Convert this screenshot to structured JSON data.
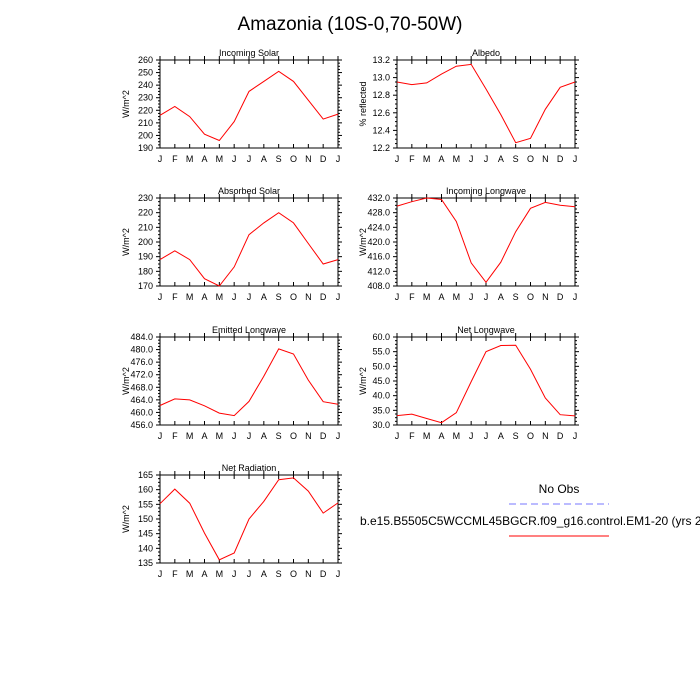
{
  "figure": {
    "title": "Amazonia (10S-0,70-50W)",
    "legend": {
      "entries": [
        {
          "label": "No Obs",
          "color": "#7777ff",
          "dash": true
        },
        {
          "label": "b.e15.B5505C5WCCML45BGCR.f09_g16.control.EM1-20 (yrs 2",
          "color": "#ff0000",
          "dash": false
        }
      ]
    }
  },
  "chart_data": [
    {
      "type": "line",
      "title": "Incoming Solar",
      "ylabel": "W/m^2",
      "categories": [
        "J",
        "F",
        "M",
        "A",
        "M",
        "J",
        "J",
        "A",
        "S",
        "O",
        "N",
        "D",
        "J"
      ],
      "ylim": [
        190,
        260
      ],
      "yticks": [
        190,
        200,
        210,
        220,
        230,
        240,
        250,
        260
      ],
      "ytick_labels": [
        "190",
        "200",
        "210",
        "220",
        "230",
        "240",
        "250",
        "260"
      ],
      "series": [
        {
          "color": "#ff0000",
          "values": [
            216,
            223,
            215,
            201,
            196,
            211,
            235,
            243,
            251,
            243,
            228,
            213,
            217
          ]
        }
      ]
    },
    {
      "type": "line",
      "title": "Albedo",
      "ylabel": "% reflected",
      "categories": [
        "J",
        "F",
        "M",
        "A",
        "M",
        "J",
        "J",
        "A",
        "S",
        "O",
        "N",
        "D",
        "J"
      ],
      "ylim": [
        12.2,
        13.2
      ],
      "yticks": [
        12.2,
        12.4,
        12.6,
        12.8,
        13.0,
        13.2
      ],
      "ytick_labels": [
        "12.2",
        "12.4",
        "12.6",
        "12.8",
        "13.0",
        "13.2"
      ],
      "series": [
        {
          "color": "#ff0000",
          "values": [
            12.95,
            12.92,
            12.94,
            13.04,
            13.13,
            13.15,
            12.87,
            12.58,
            12.26,
            12.31,
            12.64,
            12.89,
            12.95
          ]
        }
      ]
    },
    {
      "type": "line",
      "title": "Absorbed Solar",
      "ylabel": "W/m^2",
      "categories": [
        "J",
        "F",
        "M",
        "A",
        "M",
        "J",
        "J",
        "A",
        "S",
        "O",
        "N",
        "D",
        "J"
      ],
      "ylim": [
        170,
        230
      ],
      "yticks": [
        170,
        180,
        190,
        200,
        210,
        220,
        230
      ],
      "ytick_labels": [
        "170",
        "180",
        "190",
        "200",
        "210",
        "220",
        "230"
      ],
      "series": [
        {
          "color": "#ff0000",
          "values": [
            188,
            194,
            188,
            175,
            170,
            183,
            205,
            213,
            220,
            213,
            199,
            185,
            188
          ]
        }
      ]
    },
    {
      "type": "line",
      "title": "Incoming Longwave",
      "ylabel": "W/m^2",
      "categories": [
        "J",
        "F",
        "M",
        "A",
        "M",
        "J",
        "J",
        "A",
        "S",
        "O",
        "N",
        "D",
        "J"
      ],
      "ylim": [
        408,
        432
      ],
      "yticks": [
        408,
        412,
        416,
        420,
        424,
        428,
        432
      ],
      "ytick_labels": [
        "408.0",
        "412.0",
        "416.0",
        "420.0",
        "424.0",
        "428.0",
        "432.0"
      ],
      "series": [
        {
          "color": "#ff0000",
          "values": [
            429.8,
            431,
            432,
            431.6,
            425.6,
            414.3,
            409,
            414.5,
            422.8,
            429.2,
            430.8,
            430,
            429.6
          ]
        }
      ]
    },
    {
      "type": "line",
      "title": "Emitted Longwave",
      "ylabel": "W/m^2",
      "categories": [
        "J",
        "F",
        "M",
        "A",
        "M",
        "J",
        "J",
        "A",
        "S",
        "O",
        "N",
        "D",
        "J"
      ],
      "ylim": [
        456,
        484
      ],
      "yticks": [
        456,
        460,
        464,
        468,
        472,
        476,
        480,
        484
      ],
      "ytick_labels": [
        "456.0",
        "460.0",
        "464.0",
        "468.0",
        "472.0",
        "476.0",
        "480.0",
        "484.0"
      ],
      "series": [
        {
          "color": "#ff0000",
          "values": [
            462.2,
            464.3,
            464,
            462.1,
            459.8,
            459,
            463.5,
            471.5,
            480.2,
            478.6,
            470.3,
            463.4,
            462.6
          ]
        }
      ]
    },
    {
      "type": "line",
      "title": "Net Longwave",
      "ylabel": "W/m^2",
      "categories": [
        "J",
        "F",
        "M",
        "A",
        "M",
        "J",
        "J",
        "A",
        "S",
        "O",
        "N",
        "D",
        "J"
      ],
      "ylim": [
        30,
        60
      ],
      "yticks": [
        30,
        35,
        40,
        45,
        50,
        55,
        60
      ],
      "ytick_labels": [
        "30.0",
        "35.0",
        "40.0",
        "45.0",
        "50.0",
        "55.0",
        "60.0"
      ],
      "series": [
        {
          "color": "#ff0000",
          "values": [
            33.2,
            33.7,
            32.2,
            30.8,
            34.2,
            44.8,
            55,
            57.1,
            57.2,
            49,
            39.2,
            33.5,
            33.1
          ]
        }
      ]
    },
    {
      "type": "line",
      "title": "Net Radiation",
      "ylabel": "W/m^2",
      "categories": [
        "J",
        "F",
        "M",
        "A",
        "M",
        "J",
        "J",
        "A",
        "S",
        "O",
        "N",
        "D",
        "J"
      ],
      "ylim": [
        135,
        165
      ],
      "yticks": [
        135,
        140,
        145,
        150,
        155,
        160,
        165
      ],
      "ytick_labels": [
        "135",
        "140",
        "145",
        "150",
        "155",
        "160",
        "165"
      ],
      "series": [
        {
          "color": "#ff0000",
          "values": [
            155.2,
            160.2,
            155.4,
            145.2,
            136.1,
            138.4,
            150,
            156,
            163.4,
            164,
            159.5,
            152,
            155.5
          ]
        }
      ]
    }
  ]
}
